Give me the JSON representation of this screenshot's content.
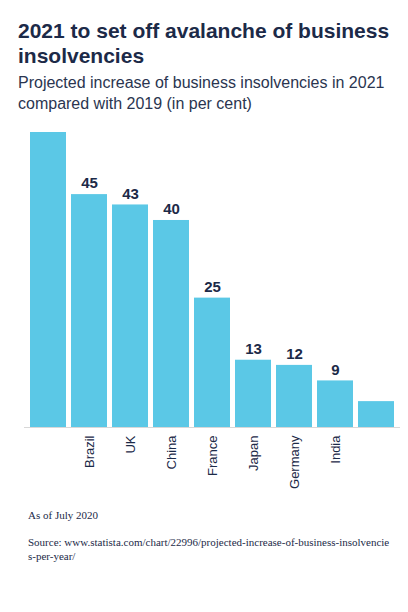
{
  "chart_data": {
    "type": "bar",
    "title": "2021 to set off avalanche of business insolvencies",
    "subtitle": "Projected increase of business insolvencies in 2021 compared with 2019 (in per cent)",
    "note": "As of July 2020",
    "source": "Source: www.statista.com/chart/22996/projected-increase-of-business-insolvencies-per-year/",
    "categories": [
      null,
      "Brazil",
      "UK",
      "China",
      "France",
      "Japan",
      "Germany",
      "India",
      null
    ],
    "values": [
      57,
      45,
      43,
      40,
      25,
      13,
      12,
      9,
      5
    ],
    "value_labels": [
      null,
      "45",
      "43",
      "40",
      "25",
      "13",
      "12",
      "9",
      null
    ],
    "color": "#5bc8e6",
    "ylim": [
      0,
      57
    ],
    "data_labels": true,
    "tick_labels": "x"
  }
}
